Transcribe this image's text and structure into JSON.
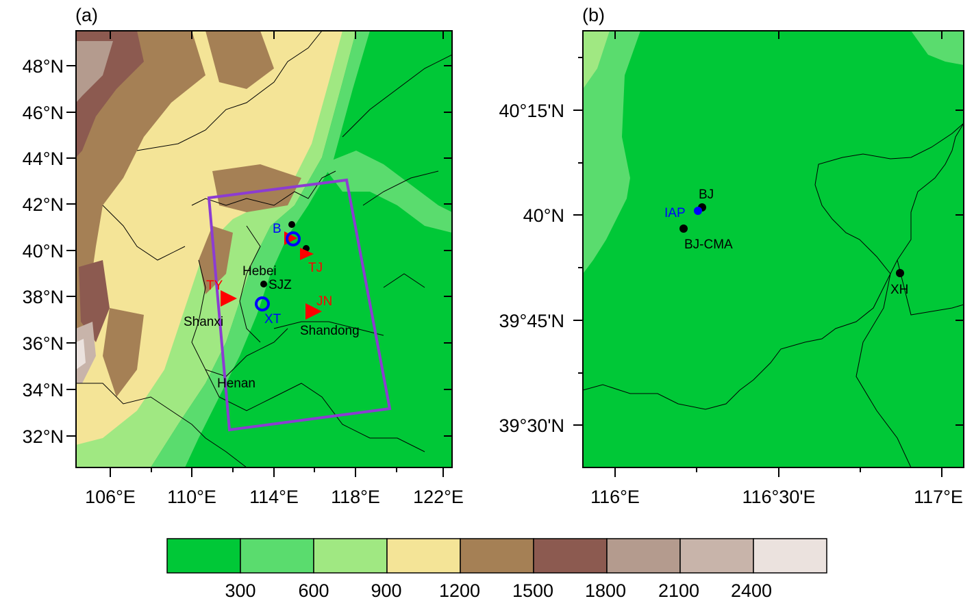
{
  "panels": {
    "a": {
      "label": "(a)",
      "lat_labels": [
        "48°N",
        "46°N",
        "44°N",
        "42°N",
        "40°N",
        "38°N",
        "36°N",
        "34°N",
        "32°N"
      ],
      "lon_labels": [
        "106°E",
        "110°E",
        "114°E",
        "118°E",
        "122°E"
      ],
      "places": {
        "hebei": "Hebei",
        "shanxi": "Shanxi",
        "shandong": "Shandong",
        "henan": "Henan",
        "sjz": "SJZ",
        "ty": "TY",
        "jn": "JN",
        "tj": "TJ",
        "xt": "XT",
        "bj_short": "B"
      }
    },
    "b": {
      "label": "(b)",
      "lat_labels": [
        "40°15'N",
        "40°N",
        "39°45'N",
        "39°30'N"
      ],
      "lon_labels": [
        "116°E",
        "116°30'E",
        "117°E"
      ],
      "places": {
        "bj": "BJ",
        "iap": "IAP",
        "bjcma": "BJ-CMA",
        "xh": "XH"
      }
    }
  },
  "legend": {
    "labels": [
      "300",
      "600",
      "900",
      "1200",
      "1500",
      "1800",
      "2100",
      "2400"
    ],
    "colors": [
      "#00c837",
      "#5adc6e",
      "#a0e882",
      "#f4e497",
      "#a58055",
      "#8c5a50",
      "#b49b8e",
      "#c8b4aa",
      "#ebe2de"
    ]
  },
  "colors": {
    "box": "#8c3cd2",
    "red_marker": "#ff0000",
    "blue_marker": "#0000ff",
    "black_marker": "#000000"
  }
}
